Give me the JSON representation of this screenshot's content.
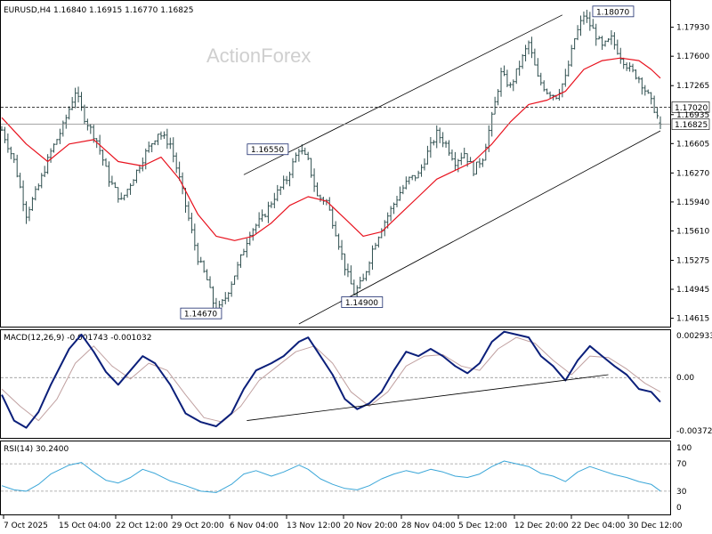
{
  "window": {
    "header": "EURUSD,H4  1.16840 1.16915 1.16770 1.16825",
    "watermark": "ActionForex"
  },
  "colors": {
    "candle": "#2f4f4f",
    "ma": "#e8121e",
    "macd": "#0b1f7a",
    "signal": "#c0a0a0",
    "rsi": "#3aa6d8",
    "channel": "#000000"
  },
  "time_labels": [
    "7 Oct 2025",
    "15 Oct 04:00",
    "22 Oct 12:00",
    "29 Oct 20:00",
    "6 Nov 04:00",
    "13 Nov 12:00",
    "20 Nov 20:00",
    "28 Nov 04:00",
    "5 Dec 12:00",
    "12 Dec 20:00",
    "22 Dec 04:00",
    "30 Dec 12:00"
  ],
  "chart_data": [
    {
      "type": "candlestick",
      "title": "EURUSD,H4",
      "ohlc": {
        "open": 1.1684,
        "high": 1.16915,
        "low": 1.1677,
        "close": 1.16825
      },
      "ylim": [
        1.1455,
        1.182
      ],
      "y_ticks": [
        "1.17930",
        "1.17600",
        "1.17265",
        "1.16935",
        "1.16605",
        "1.16270",
        "1.15940",
        "1.15610",
        "1.15275",
        "1.14945",
        "1.14615"
      ],
      "price_path": [
        [
          0,
          1.1676
        ],
        [
          4,
          1.1641
        ],
        [
          8,
          1.158
        ],
        [
          12,
          1.1612
        ],
        [
          16,
          1.1651
        ],
        [
          20,
          1.168
        ],
        [
          24,
          1.172
        ],
        [
          27,
          1.169
        ],
        [
          31,
          1.1664
        ],
        [
          35,
          1.162
        ],
        [
          39,
          1.1595
        ],
        [
          43,
          1.1622
        ],
        [
          47,
          1.165
        ],
        [
          51,
          1.1673
        ],
        [
          55,
          1.166
        ],
        [
          58,
          1.162
        ],
        [
          61,
          1.1575
        ],
        [
          64,
          1.153
        ],
        [
          67,
          1.1505
        ],
        [
          70,
          1.1467
        ],
        [
          73,
          1.1485
        ],
        [
          77,
          1.152
        ],
        [
          81,
          1.156
        ],
        [
          85,
          1.1575
        ],
        [
          89,
          1.16
        ],
        [
          93,
          1.162
        ],
        [
          97,
          1.1655
        ],
        [
          100,
          1.164
        ],
        [
          103,
          1.16
        ],
        [
          106,
          1.1595
        ],
        [
          109,
          1.156
        ],
        [
          112,
          1.152
        ],
        [
          115,
          1.149
        ],
        [
          118,
          1.1505
        ],
        [
          121,
          1.154
        ],
        [
          124,
          1.1565
        ],
        [
          127,
          1.1585
        ],
        [
          130,
          1.1605
        ],
        [
          133,
          1.162
        ],
        [
          136,
          1.1625
        ],
        [
          139,
          1.165
        ],
        [
          142,
          1.1672
        ],
        [
          145,
          1.166
        ],
        [
          148,
          1.164
        ],
        [
          151,
          1.165
        ],
        [
          154,
          1.163
        ],
        [
          157,
          1.1645
        ],
        [
          160,
          1.169
        ],
        [
          163,
          1.174
        ],
        [
          166,
          1.1725
        ],
        [
          169,
          1.175
        ],
        [
          172,
          1.1775
        ],
        [
          175,
          1.1735
        ],
        [
          178,
          1.172
        ],
        [
          181,
          1.1715
        ],
        [
          184,
          1.1735
        ],
        [
          187,
          1.178
        ],
        [
          190,
          1.1807
        ],
        [
          193,
          1.179
        ],
        [
          196,
          1.177
        ],
        [
          199,
          1.178
        ],
        [
          202,
          1.176
        ],
        [
          205,
          1.1745
        ],
        [
          208,
          1.1735
        ],
        [
          211,
          1.1715
        ],
        [
          213,
          1.17
        ],
        [
          215,
          1.1683
        ]
      ],
      "ma_path": [
        [
          0,
          1.169
        ],
        [
          8,
          1.166
        ],
        [
          15,
          1.164
        ],
        [
          22,
          1.166
        ],
        [
          30,
          1.1665
        ],
        [
          38,
          1.164
        ],
        [
          46,
          1.1635
        ],
        [
          52,
          1.1645
        ],
        [
          58,
          1.162
        ],
        [
          64,
          1.158
        ],
        [
          70,
          1.1555
        ],
        [
          76,
          1.155
        ],
        [
          82,
          1.1555
        ],
        [
          88,
          1.157
        ],
        [
          94,
          1.159
        ],
        [
          100,
          1.16
        ],
        [
          106,
          1.1595
        ],
        [
          112,
          1.1575
        ],
        [
          118,
          1.1555
        ],
        [
          124,
          1.156
        ],
        [
          130,
          1.158
        ],
        [
          136,
          1.16
        ],
        [
          142,
          1.162
        ],
        [
          148,
          1.163
        ],
        [
          154,
          1.164
        ],
        [
          160,
          1.166
        ],
        [
          166,
          1.1685
        ],
        [
          172,
          1.1705
        ],
        [
          178,
          1.171
        ],
        [
          184,
          1.172
        ],
        [
          190,
          1.1745
        ],
        [
          196,
          1.1755
        ],
        [
          202,
          1.1758
        ],
        [
          208,
          1.1755
        ],
        [
          212,
          1.1745
        ],
        [
          215,
          1.1735
        ]
      ],
      "channel": {
        "upper": [
          [
            79,
            1.1625
          ],
          [
            183,
            1.1807
          ]
        ],
        "lower": [
          [
            97,
            1.1455
          ],
          [
            215,
            1.1675
          ]
        ]
      },
      "horizontal_levels": [
        {
          "value": 1.1702,
          "label": "1.17020",
          "style": "dashed"
        },
        {
          "value": 1.16825,
          "label": "1.16825",
          "style": "solid"
        }
      ],
      "callouts": [
        {
          "text": "1.18070",
          "x": 190,
          "y": 1.1807
        },
        {
          "text": "1.16550",
          "x": 97,
          "y": 1.1655
        },
        {
          "text": "1.14900",
          "x": 115,
          "y": 1.149
        },
        {
          "text": "1.14670",
          "x": 70,
          "y": 1.1467
        }
      ]
    },
    {
      "type": "line",
      "title": "MACD(12,26,9) -0.001743 -0.001032",
      "ylim": [
        -0.00402,
        0.00318
      ],
      "y_ticks": [
        "0.002933",
        "0.00",
        "-0.003724"
      ],
      "series": [
        {
          "role": "macd",
          "points": [
            [
              0,
              -0.0012
            ],
            [
              4,
              -0.003
            ],
            [
              8,
              -0.0035
            ],
            [
              12,
              -0.0024
            ],
            [
              16,
              -0.0005
            ],
            [
              22,
              0.002
            ],
            [
              26,
              0.003
            ],
            [
              30,
              0.0018
            ],
            [
              34,
              0.0004
            ],
            [
              38,
              -0.0005
            ],
            [
              42,
              0.0005
            ],
            [
              46,
              0.0015
            ],
            [
              50,
              0.001
            ],
            [
              55,
              -0.0005
            ],
            [
              60,
              -0.0025
            ],
            [
              65,
              -0.0031
            ],
            [
              70,
              -0.0034
            ],
            [
              75,
              -0.0025
            ],
            [
              79,
              -0.0008
            ],
            [
              83,
              0.0005
            ],
            [
              88,
              0.001
            ],
            [
              92,
              0.0015
            ],
            [
              97,
              0.0025
            ],
            [
              100,
              0.0028
            ],
            [
              104,
              0.0015
            ],
            [
              108,
              0.0002
            ],
            [
              112,
              -0.0015
            ],
            [
              116,
              -0.0022
            ],
            [
              120,
              -0.0018
            ],
            [
              124,
              -0.001
            ],
            [
              128,
              0.0005
            ],
            [
              132,
              0.0018
            ],
            [
              136,
              0.0015
            ],
            [
              140,
              0.002
            ],
            [
              144,
              0.0015
            ],
            [
              148,
              0.0008
            ],
            [
              152,
              0.0003
            ],
            [
              156,
              0.001
            ],
            [
              160,
              0.0025
            ],
            [
              164,
              0.0032
            ],
            [
              168,
              0.003
            ],
            [
              172,
              0.0028
            ],
            [
              176,
              0.0015
            ],
            [
              180,
              0.0008
            ],
            [
              184,
              -0.0002
            ],
            [
              188,
              0.0012
            ],
            [
              192,
              0.0022
            ],
            [
              196,
              0.0015
            ],
            [
              200,
              0.0008
            ],
            [
              204,
              0.0002
            ],
            [
              208,
              -0.0008
            ],
            [
              212,
              -0.001
            ],
            [
              215,
              -0.0017
            ]
          ]
        },
        {
          "role": "signal",
          "points": [
            [
              0,
              -0.0008
            ],
            [
              6,
              -0.002
            ],
            [
              12,
              -0.003
            ],
            [
              18,
              -0.0015
            ],
            [
              24,
              0.001
            ],
            [
              30,
              0.0022
            ],
            [
              36,
              0.0008
            ],
            [
              42,
              -0.0001
            ],
            [
              48,
              0.001
            ],
            [
              54,
              0.0005
            ],
            [
              60,
              -0.0012
            ],
            [
              66,
              -0.0028
            ],
            [
              72,
              -0.0031
            ],
            [
              78,
              -0.002
            ],
            [
              84,
              -0.0002
            ],
            [
              90,
              0.0008
            ],
            [
              96,
              0.0018
            ],
            [
              102,
              0.0022
            ],
            [
              108,
              0.001
            ],
            [
              114,
              -0.001
            ],
            [
              120,
              -0.002
            ],
            [
              126,
              -0.001
            ],
            [
              132,
              0.0008
            ],
            [
              138,
              0.0015
            ],
            [
              144,
              0.0016
            ],
            [
              150,
              0.0008
            ],
            [
              156,
              0.0005
            ],
            [
              162,
              0.002
            ],
            [
              168,
              0.0028
            ],
            [
              174,
              0.0024
            ],
            [
              180,
              0.0012
            ],
            [
              186,
              0.0002
            ],
            [
              192,
              0.0015
            ],
            [
              198,
              0.0014
            ],
            [
              204,
              0.0006
            ],
            [
              210,
              -0.0004
            ],
            [
              215,
              -0.001
            ]
          ]
        }
      ],
      "trendline": [
        [
          80,
          -0.003
        ],
        [
          198,
          0.0002
        ]
      ]
    },
    {
      "type": "line",
      "title": "RSI(14) 30.2400",
      "ylim": [
        0,
        100
      ],
      "y_ticks": [
        "100",
        "70",
        "30",
        "0"
      ],
      "levels": [
        70,
        30
      ],
      "series": [
        {
          "role": "rsi",
          "points": [
            [
              0,
              38
            ],
            [
              4,
              32
            ],
            [
              8,
              30
            ],
            [
              12,
              40
            ],
            [
              16,
              55
            ],
            [
              22,
              68
            ],
            [
              26,
              72
            ],
            [
              30,
              58
            ],
            [
              34,
              46
            ],
            [
              38,
              42
            ],
            [
              42,
              50
            ],
            [
              46,
              62
            ],
            [
              50,
              56
            ],
            [
              55,
              45
            ],
            [
              60,
              38
            ],
            [
              65,
              30
            ],
            [
              70,
              28
            ],
            [
              75,
              40
            ],
            [
              79,
              55
            ],
            [
              83,
              60
            ],
            [
              88,
              52
            ],
            [
              92,
              58
            ],
            [
              97,
              68
            ],
            [
              100,
              62
            ],
            [
              104,
              48
            ],
            [
              108,
              40
            ],
            [
              112,
              34
            ],
            [
              116,
              32
            ],
            [
              120,
              38
            ],
            [
              124,
              48
            ],
            [
              128,
              55
            ],
            [
              132,
              60
            ],
            [
              136,
              56
            ],
            [
              140,
              62
            ],
            [
              144,
              58
            ],
            [
              148,
              52
            ],
            [
              152,
              50
            ],
            [
              156,
              55
            ],
            [
              160,
              66
            ],
            [
              164,
              74
            ],
            [
              168,
              70
            ],
            [
              172,
              66
            ],
            [
              176,
              56
            ],
            [
              180,
              52
            ],
            [
              184,
              44
            ],
            [
              188,
              58
            ],
            [
              192,
              66
            ],
            [
              196,
              60
            ],
            [
              200,
              54
            ],
            [
              204,
              50
            ],
            [
              208,
              44
            ],
            [
              212,
              40
            ],
            [
              215,
              30.24
            ]
          ]
        }
      ]
    }
  ]
}
